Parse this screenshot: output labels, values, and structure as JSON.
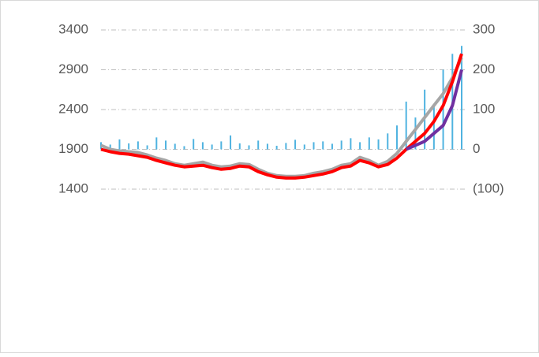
{
  "chart_data": {
    "type": "combo",
    "ylim": [
      1400,
      3400
    ],
    "yticks": [
      1400,
      1900,
      2400,
      2900,
      3400
    ],
    "y2lim": [
      -100,
      300
    ],
    "y2ticks": [
      {
        "value": -100,
        "label": "(100)"
      },
      0,
      100,
      200,
      300
    ],
    "grid": true,
    "x": [
      1,
      2,
      3,
      4,
      5,
      6,
      7,
      8,
      9,
      10,
      11,
      12,
      13,
      14,
      15,
      16,
      17,
      18,
      19,
      20,
      21,
      22,
      23,
      24,
      25,
      26,
      27,
      28,
      29,
      30,
      31,
      32,
      33,
      34,
      35,
      36,
      37,
      38,
      39,
      40
    ],
    "xlim": [
      1,
      40
    ],
    "series": [
      {
        "type": "bar",
        "axis": "y2",
        "color": "#4fb3e0",
        "values": [
          18,
          12,
          25,
          15,
          20,
          10,
          30,
          22,
          14,
          8,
          26,
          18,
          12,
          20,
          35,
          15,
          10,
          22,
          14,
          9,
          16,
          24,
          12,
          18,
          20,
          14,
          22,
          28,
          18,
          30,
          25,
          40,
          60,
          120,
          80,
          150,
          110,
          200,
          240,
          260
        ]
      },
      {
        "type": "line",
        "color": "#a6a6a6",
        "values": [
          1950,
          1900,
          1880,
          1870,
          1860,
          1830,
          1790,
          1760,
          1720,
          1700,
          1720,
          1740,
          1700,
          1680,
          1690,
          1720,
          1710,
          1650,
          1600,
          1570,
          1560,
          1560,
          1570,
          1600,
          1620,
          1650,
          1700,
          1720,
          1800,
          1760,
          1700,
          1750,
          1850,
          2000,
          2150,
          2300,
          2450,
          2600,
          2800,
          3050
        ]
      },
      {
        "type": "line",
        "color": "#ff0000",
        "values": [
          1900,
          1870,
          1850,
          1840,
          1820,
          1800,
          1760,
          1730,
          1700,
          1680,
          1690,
          1700,
          1670,
          1650,
          1660,
          1690,
          1680,
          1620,
          1580,
          1550,
          1540,
          1540,
          1550,
          1570,
          1590,
          1620,
          1670,
          1690,
          1760,
          1730,
          1680,
          1710,
          1790,
          1900,
          2000,
          2100,
          2250,
          2450,
          2750,
          3100
        ]
      },
      {
        "type": "line",
        "color": "#7030a0",
        "values": [
          null,
          null,
          null,
          null,
          null,
          null,
          null,
          null,
          null,
          null,
          null,
          null,
          null,
          null,
          null,
          null,
          null,
          null,
          null,
          null,
          null,
          null,
          null,
          null,
          null,
          null,
          null,
          null,
          null,
          null,
          null,
          null,
          null,
          1900,
          1950,
          2000,
          2100,
          2200,
          2450,
          2900
        ]
      }
    ]
  }
}
